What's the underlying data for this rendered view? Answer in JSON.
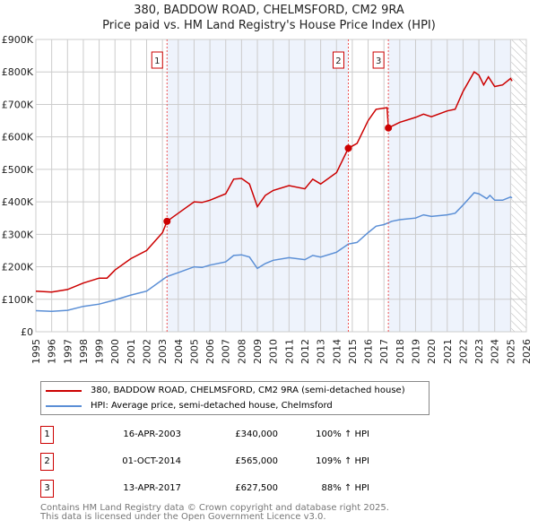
{
  "chart_data": {
    "type": "line",
    "title": "380, BADDOW ROAD, CHELMSFORD, CM2 9RA",
    "subtitle": "Price paid vs. HM Land Registry's House Price Index (HPI)",
    "xlim": [
      1995,
      2026
    ],
    "ylim": [
      0,
      900000
    ],
    "yticks": [
      "£0",
      "£100K",
      "£200K",
      "£300K",
      "£400K",
      "£500K",
      "£600K",
      "£700K",
      "£800K",
      "£900K"
    ],
    "xticks": [
      "1995",
      "1996",
      "1997",
      "1998",
      "1999",
      "2000",
      "2001",
      "2002",
      "2003",
      "2004",
      "2005",
      "2006",
      "2007",
      "2008",
      "2009",
      "2010",
      "2011",
      "2012",
      "2013",
      "2014",
      "2015",
      "2016",
      "2017",
      "2018",
      "2019",
      "2020",
      "2021",
      "2022",
      "2023",
      "2024",
      "2025",
      "2026"
    ],
    "grid": true,
    "series": [
      {
        "name": "380, BADDOW ROAD, CHELMSFORD, CM2 9RA (semi-detached house)",
        "color": "#cc0000",
        "x": [
          1995,
          1996,
          1997,
          1998,
          1999,
          1999.5,
          2000,
          2001,
          2002,
          2003,
          2003.29,
          2004,
          2005,
          2005.5,
          2006,
          2007,
          2007.5,
          2008,
          2008.5,
          2009,
          2009.5,
          2010,
          2011,
          2012,
          2012.5,
          2013,
          2014,
          2014.75,
          2015.3,
          2016,
          2016.5,
          2017.2,
          2017.28,
          2018,
          2019,
          2019.5,
          2020,
          2021,
          2021.5,
          2022,
          2022.7,
          2023,
          2023.3,
          2023.6,
          2024,
          2024.5,
          2025,
          2025.1
        ],
        "y": [
          125,
          122,
          130,
          150,
          165,
          165,
          190,
          225,
          250,
          305,
          340,
          365,
          400,
          398,
          405,
          425,
          470,
          472,
          455,
          385,
          420,
          435,
          450,
          440,
          470,
          455,
          490,
          565,
          580,
          650,
          685,
          690,
          627.5,
          645,
          660,
          670,
          662,
          680,
          685,
          740,
          800,
          790,
          760,
          785,
          755,
          760,
          780,
          772
        ]
      },
      {
        "name": "HPI: Average price, semi-detached house, Chelmsford",
        "color": "#5b8fd6",
        "x": [
          1995,
          1996,
          1997,
          1998,
          1999,
          2000,
          2001,
          2002,
          2003,
          2003.29,
          2004,
          2005,
          2005.5,
          2006,
          2007,
          2007.5,
          2008,
          2008.5,
          2009,
          2009.5,
          2010,
          2011,
          2012,
          2012.5,
          2013,
          2014,
          2014.75,
          2015.3,
          2016,
          2016.5,
          2017,
          2017.5,
          2018,
          2019,
          2019.5,
          2020,
          2021,
          2021.5,
          2022,
          2022.7,
          2023,
          2023.5,
          2023.7,
          2024,
          2024.5,
          2025,
          2025.1
        ],
        "y": [
          65,
          63,
          66,
          78,
          85,
          98,
          113,
          125,
          160,
          170,
          182,
          200,
          198,
          205,
          215,
          235,
          237,
          230,
          195,
          210,
          220,
          228,
          222,
          235,
          230,
          245,
          270,
          275,
          305,
          325,
          330,
          340,
          345,
          350,
          360,
          355,
          360,
          365,
          390,
          428,
          425,
          410,
          420,
          405,
          405,
          415,
          412
        ]
      }
    ],
    "y_unit": "thousands GBP",
    "sales": [
      {
        "id": "1",
        "x": 2003.29,
        "price": 340000,
        "date": "16-APR-2003",
        "price_label": "£340,000",
        "hpi": "100% ↑ HPI"
      },
      {
        "id": "2",
        "x": 2014.75,
        "price": 565000,
        "date": "01-OCT-2014",
        "price_label": "£565,000",
        "hpi": "109% ↑ HPI"
      },
      {
        "id": "3",
        "x": 2017.28,
        "price": 627500,
        "date": "13-APR-2017",
        "price_label": "£627,500",
        "hpi": "88% ↑ HPI"
      }
    ],
    "legend_placement": "bottom"
  },
  "footer": {
    "line1": "Contains HM Land Registry data © Crown copyright and database right 2025.",
    "line2": "This data is licensed under the Open Government Licence v3.0."
  }
}
